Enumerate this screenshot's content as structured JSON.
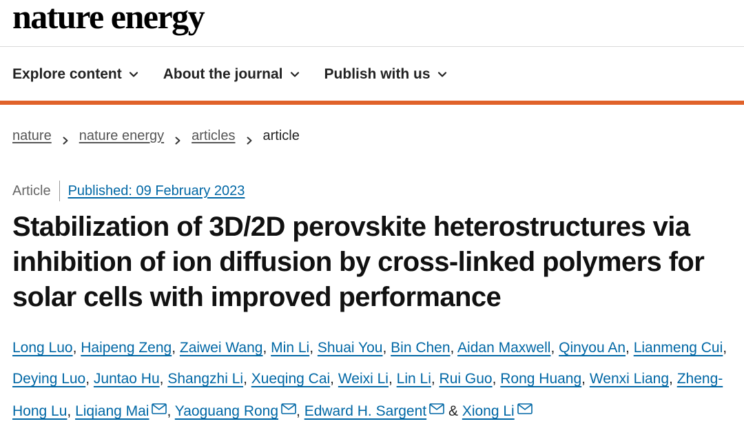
{
  "header": {
    "logo": "nature energy"
  },
  "nav": [
    {
      "label": "Explore content"
    },
    {
      "label": "About the journal"
    },
    {
      "label": "Publish with us"
    }
  ],
  "accent_color": "#e0622a",
  "breadcrumb": {
    "items": [
      "nature",
      "nature energy",
      "articles"
    ],
    "current": "article"
  },
  "article": {
    "type": "Article",
    "published": "Published: 09 February 2023",
    "title": "Stabilization of 3D/2D perovskite heterostructures via inhibition of ion diffusion by cross-linked polymers for solar cells with improved performance",
    "authors": [
      {
        "name": "Long Luo",
        "sep": ", "
      },
      {
        "name": "Haipeng Zeng",
        "sep": ", "
      },
      {
        "name": "Zaiwei Wang",
        "sep": ", "
      },
      {
        "name": "Min Li",
        "sep": ", "
      },
      {
        "name": "Shuai You",
        "sep": ", "
      },
      {
        "name": "Bin Chen",
        "sep": ", "
      },
      {
        "name": "Aidan Maxwell",
        "sep": ", "
      },
      {
        "name": "Qinyou An",
        "sep": ", "
      },
      {
        "name": "Lianmeng Cui",
        "sep": ", "
      },
      {
        "name": "Deying Luo",
        "sep": ", "
      },
      {
        "name": "Juntao Hu",
        "sep": ", "
      },
      {
        "name": "Shangzhi Li",
        "sep": ", "
      },
      {
        "name": "Xueqing Cai",
        "sep": ", "
      },
      {
        "name": "Weixi Li",
        "sep": ", "
      },
      {
        "name": "Lin Li",
        "sep": ", "
      },
      {
        "name": "Rui Guo",
        "sep": ", "
      },
      {
        "name": "Rong Huang",
        "sep": ", "
      },
      {
        "name": "Wenxi Liang",
        "sep": ", "
      },
      {
        "name": "Zheng-Hong Lu",
        "sep": ", "
      },
      {
        "name": "Liqiang Mai",
        "mail": true,
        "sep": ", "
      },
      {
        "name": "Yaoguang Rong",
        "mail": true,
        "sep": ", "
      },
      {
        "name": "Edward H. Sargent",
        "mail": true,
        "sep": " & "
      },
      {
        "name": "Xiong Li",
        "mail": true,
        "sep": ""
      }
    ]
  }
}
